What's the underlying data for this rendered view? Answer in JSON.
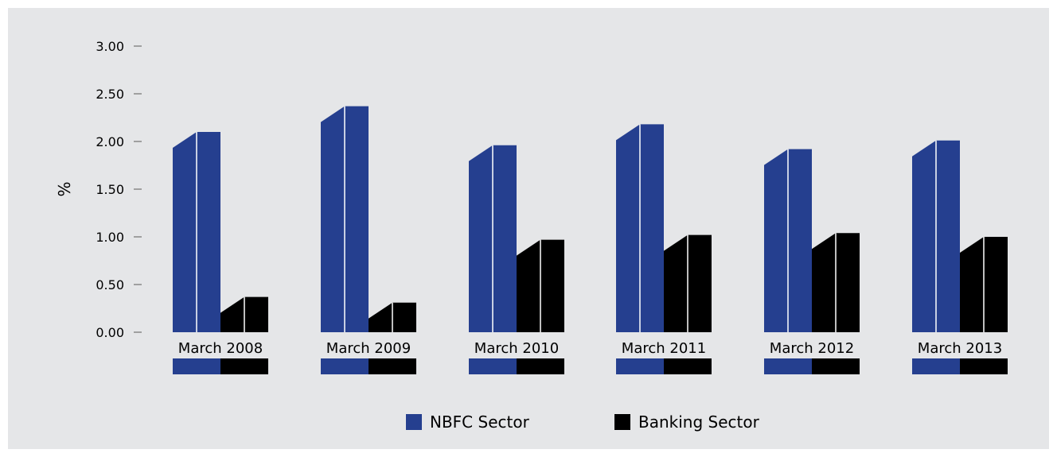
{
  "chart_data": {
    "type": "bar",
    "title": "",
    "xlabel": "",
    "ylabel": "%",
    "ylim": [
      0,
      3
    ],
    "yticks": [
      "0.00",
      "0.50",
      "1.00",
      "1.50",
      "2.00",
      "2.50",
      "3.00"
    ],
    "categories": [
      "March 2008",
      "March 2009",
      "March 2010",
      "March 2011",
      "March 2012",
      "March 2013"
    ],
    "series": [
      {
        "name": "NBFC Sector",
        "color": "#253f8f",
        "values": [
          2.1,
          2.37,
          1.96,
          2.18,
          1.92,
          2.01
        ]
      },
      {
        "name": "Banking Sector",
        "color": "#000000",
        "values": [
          0.37,
          0.31,
          0.97,
          1.02,
          1.04,
          1.0
        ]
      }
    ],
    "grid": false,
    "legend_position": "bottom"
  }
}
